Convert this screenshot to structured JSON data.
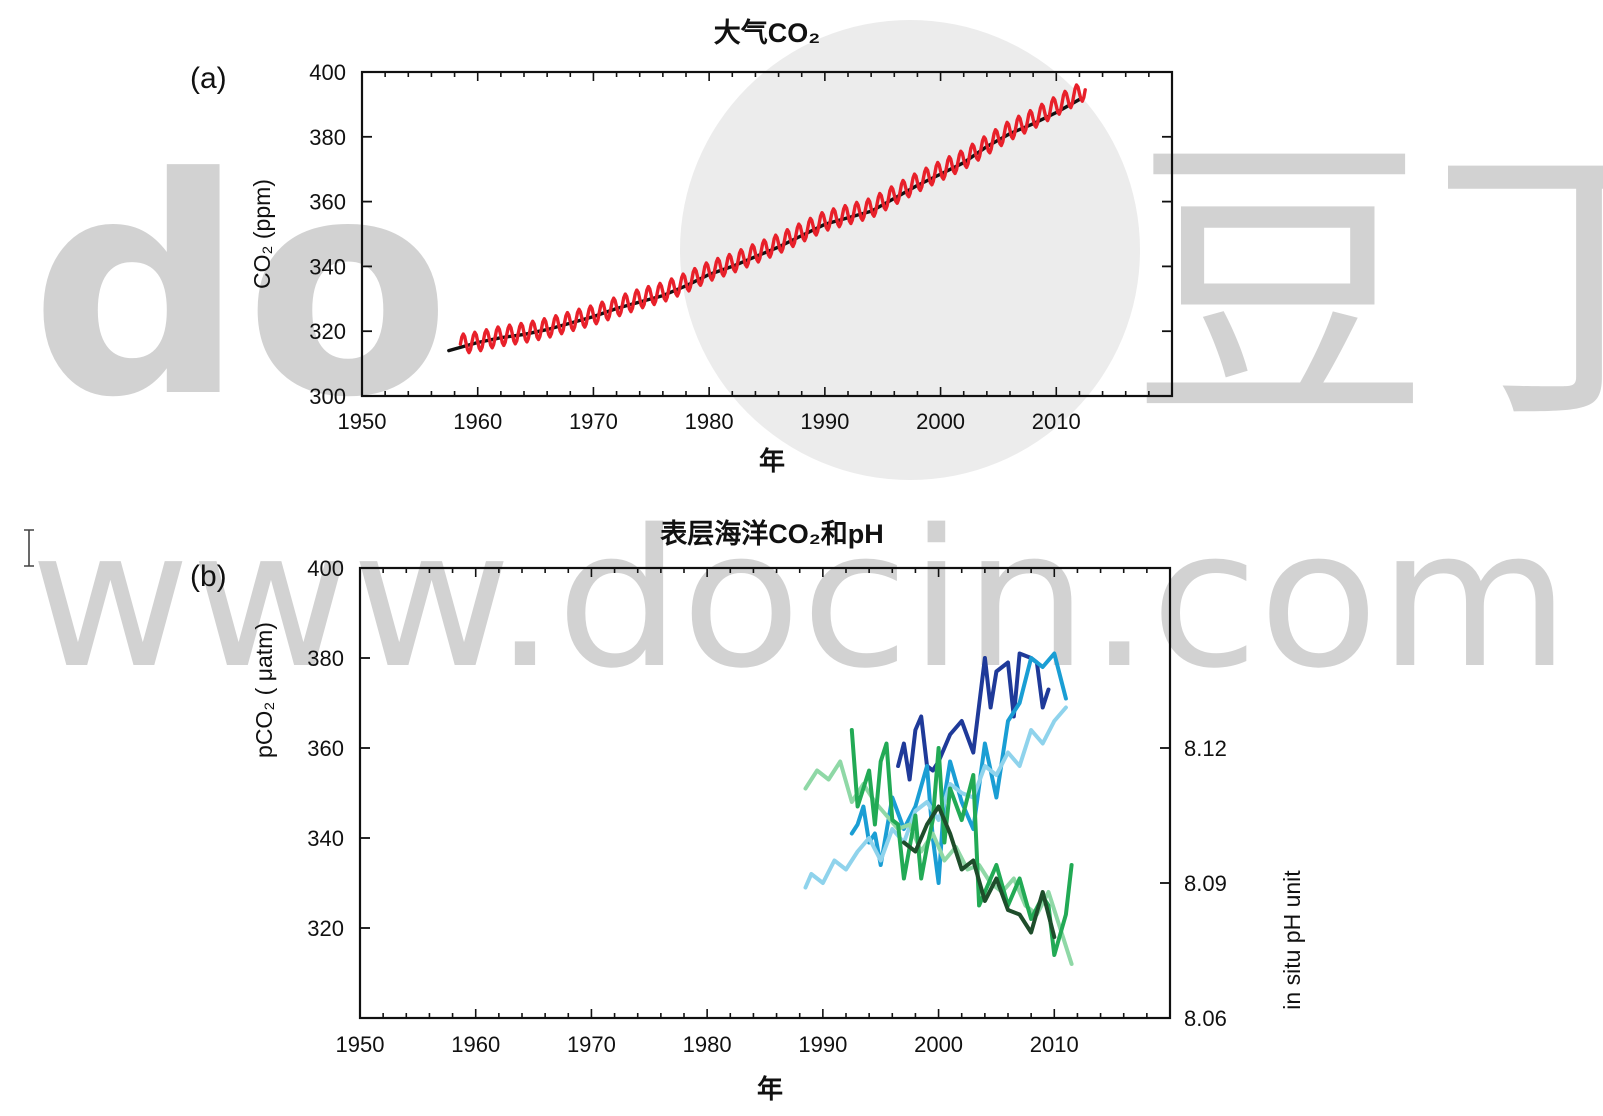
{
  "watermark": {
    "domain_text": "www.docin.com",
    "left_text": "do",
    "cn_text": "豆丁",
    "color": "#bfbfbf"
  },
  "chart_data": [
    {
      "type": "line",
      "panel_label": "(a)",
      "title": "大气CO₂",
      "xlabel": "年",
      "ylabel": "CO₂ (ppm)",
      "xlim": [
        1950,
        2020
      ],
      "ylim": [
        300,
        400
      ],
      "xticks": [
        1950,
        1960,
        1970,
        1980,
        1990,
        2000,
        2010
      ],
      "yticks": [
        300,
        320,
        340,
        360,
        380,
        400
      ],
      "grid": false,
      "series": [
        {
          "color": "#111111",
          "x": [
            1957.5,
            1960,
            1962,
            1964,
            1966,
            1968,
            1970,
            1972,
            1974,
            1976,
            1978,
            1980,
            1982,
            1984,
            1986,
            1988,
            1990,
            1992,
            1994,
            1996,
            1998,
            2000,
            2002,
            2004,
            2006,
            2008,
            2010,
            2012
          ],
          "values": [
            314,
            316.5,
            318,
            319,
            320.5,
            322.5,
            324.5,
            327,
            329,
            331,
            334,
            337.5,
            340,
            343,
            346,
            349.5,
            353,
            355,
            357,
            361,
            365,
            368.5,
            372,
            377,
            381,
            384,
            387.5,
            391.5
          ]
        },
        {
          "color": "#e8202a",
          "seasonal_amplitude_ppm": 3.0,
          "x": [
            1958.5,
            1960,
            1962,
            1964,
            1966,
            1968,
            1970,
            1972,
            1974,
            1976,
            1978,
            1980,
            1982,
            1984,
            1986,
            1988,
            1990,
            1992,
            1994,
            1996,
            1998,
            2000,
            2002,
            2004,
            2006,
            2008,
            2010,
            2012.5
          ],
          "values": [
            316,
            316.8,
            318.5,
            319.5,
            321,
            323,
            325,
            327.5,
            330,
            332,
            335,
            338.5,
            341,
            344,
            347,
            350.5,
            354,
            356,
            358,
            362,
            366,
            369.5,
            373,
            377.5,
            382,
            385.5,
            389.5,
            394.5
          ]
        }
      ]
    },
    {
      "type": "line",
      "panel_label": "(b)",
      "title": "表层海洋CO₂和pH",
      "xlabel": "年",
      "ylabel": "pCO₂ ( μatm)",
      "ylabel_right": "in situ pH unit",
      "xlim": [
        1950,
        2020
      ],
      "ylim": [
        300,
        400
      ],
      "y2lim": [
        8.06,
        8.16
      ],
      "xticks": [
        1950,
        1960,
        1970,
        1980,
        1990,
        2000,
        2010
      ],
      "yticks": [
        320,
        340,
        360,
        380,
        400
      ],
      "y2ticks": [
        8.06,
        8.09,
        8.12
      ],
      "grid": false,
      "series": [
        {
          "color": "#1f3a99",
          "axis": "left",
          "x": [
            1996.5,
            1997,
            1997.5,
            1998,
            1998.5,
            1999,
            1999.5,
            2000,
            2001,
            2002,
            2003,
            2004,
            2004.5,
            2005,
            2006,
            2006.5,
            2007,
            2008,
            2008.5,
            2009,
            2009.5
          ],
          "values": [
            356,
            361,
            353,
            364,
            367,
            356,
            355,
            357,
            363,
            366,
            359,
            380,
            369,
            377,
            379,
            367,
            381,
            380,
            379,
            369,
            373
          ]
        },
        {
          "color": "#1a9ed4",
          "axis": "left",
          "x": [
            1992.5,
            1993,
            1993.5,
            1994,
            1994.5,
            1995,
            1996,
            1997,
            1998,
            1999,
            1999.5,
            2000,
            2000.5,
            2001,
            2002,
            2003,
            2004,
            2005,
            2006,
            2007,
            2008,
            2009,
            2010,
            2011
          ],
          "values": [
            341,
            343,
            347,
            339,
            341,
            334,
            349,
            342,
            347,
            356,
            340,
            330,
            349,
            357,
            348,
            342,
            361,
            349,
            366,
            370,
            380,
            378,
            381,
            371
          ]
        },
        {
          "color": "#8fd3ec",
          "axis": "left",
          "x": [
            1988.5,
            1989,
            1990,
            1991,
            1992,
            1993,
            1994,
            1995,
            1996,
            1997,
            1998,
            1999,
            2000,
            2001,
            2002,
            2003,
            2004,
            2005,
            2006,
            2007,
            2008,
            2009,
            2010,
            2011
          ],
          "values": [
            329,
            332,
            330,
            335,
            333,
            337,
            340,
            335,
            342,
            339,
            346,
            348,
            344,
            352,
            350,
            349,
            356,
            354,
            359,
            356,
            364,
            361,
            366,
            369
          ]
        },
        {
          "color": "#8fd8a6",
          "axis": "right",
          "x": [
            1988.5,
            1989.5,
            1990.5,
            1991.5,
            1992.5,
            1993.5,
            1994.5,
            1995.5,
            1996.5,
            1997.5,
            1998.5,
            1999.5,
            2000.5,
            2001.5,
            2002.5,
            2003.5,
            2004.5,
            2005.5,
            2006.5,
            2007.5,
            2008.5,
            2009.5,
            2010.5,
            2011.5
          ],
          "values": [
            8.111,
            8.115,
            8.113,
            8.117,
            8.108,
            8.112,
            8.108,
            8.105,
            8.102,
            8.103,
            8.097,
            8.101,
            8.095,
            8.098,
            8.093,
            8.094,
            8.09,
            8.088,
            8.091,
            8.085,
            8.083,
            8.088,
            8.08,
            8.072
          ]
        },
        {
          "color": "#22aa55",
          "axis": "right",
          "x": [
            1992.5,
            1993,
            1994,
            1994.5,
            1995,
            1995.5,
            1996,
            1996.5,
            1997,
            1998,
            1998.5,
            1999,
            1999.5,
            2000,
            2000.5,
            2001,
            2002,
            2003,
            2003.5,
            2004,
            2005,
            2006,
            2007,
            2008,
            2009,
            2009.5,
            2010,
            2011,
            2011.5
          ],
          "values": [
            8.124,
            8.107,
            8.115,
            8.103,
            8.117,
            8.121,
            8.104,
            8.103,
            8.091,
            8.105,
            8.091,
            8.098,
            8.104,
            8.12,
            8.099,
            8.111,
            8.104,
            8.114,
            8.085,
            8.088,
            8.094,
            8.085,
            8.091,
            8.082,
            8.087,
            8.085,
            8.074,
            8.083,
            8.094
          ]
        },
        {
          "color": "#1e4d2b",
          "axis": "right",
          "x": [
            1997,
            1998,
            1999,
            2000,
            2001,
            2002,
            2003,
            2004,
            2005,
            2006,
            2007,
            2008,
            2009,
            2010
          ],
          "values": [
            8.099,
            8.097,
            8.103,
            8.107,
            8.101,
            8.093,
            8.095,
            8.086,
            8.091,
            8.084,
            8.083,
            8.079,
            8.088,
            8.078
          ]
        }
      ]
    }
  ]
}
